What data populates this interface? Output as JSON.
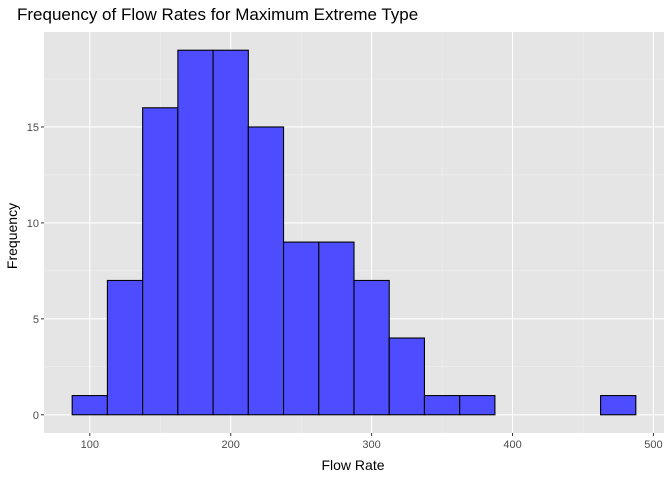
{
  "chart_data": {
    "type": "bar",
    "title": "Frequency of Flow Rates for Maximum Extreme Type",
    "xlabel": "Flow Rate",
    "ylabel": "Frequency",
    "bin_width": 25,
    "bins": [
      {
        "start": 87.5,
        "end": 112.5,
        "count": 1
      },
      {
        "start": 112.5,
        "end": 137.5,
        "count": 7
      },
      {
        "start": 137.5,
        "end": 162.5,
        "count": 16
      },
      {
        "start": 162.5,
        "end": 187.5,
        "count": 19
      },
      {
        "start": 187.5,
        "end": 212.5,
        "count": 19
      },
      {
        "start": 212.5,
        "end": 237.5,
        "count": 15
      },
      {
        "start": 237.5,
        "end": 262.5,
        "count": 9
      },
      {
        "start": 262.5,
        "end": 287.5,
        "count": 9
      },
      {
        "start": 287.5,
        "end": 312.5,
        "count": 7
      },
      {
        "start": 312.5,
        "end": 337.5,
        "count": 4
      },
      {
        "start": 337.5,
        "end": 362.5,
        "count": 1
      },
      {
        "start": 362.5,
        "end": 387.5,
        "count": 1
      },
      {
        "start": 387.5,
        "end": 412.5,
        "count": 0
      },
      {
        "start": 412.5,
        "end": 437.5,
        "count": 0
      },
      {
        "start": 437.5,
        "end": 462.5,
        "count": 0
      },
      {
        "start": 462.5,
        "end": 487.5,
        "count": 1
      }
    ],
    "xlim": [
      67.5,
      507.5
    ],
    "ylim": [
      -0.95,
      19.95
    ],
    "x_ticks": [
      100,
      200,
      300,
      400,
      500
    ],
    "y_ticks": [
      0,
      5,
      10,
      15
    ],
    "grid": true,
    "colors": {
      "bar_fill": "#4d4dff",
      "bar_outline": "#000000",
      "panel_background": "#e5e5e5",
      "grid_major": "#ffffff",
      "grid_minor": "#f2f2f2"
    }
  }
}
